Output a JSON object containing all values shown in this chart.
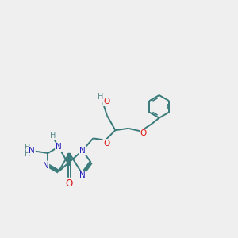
{
  "bg_color": "#efefef",
  "bond_color": "#3a7a7a",
  "N_color": "#2020bb",
  "O_color": "#dd1111",
  "H_color": "#5a8a8a",
  "fs": 7.5,
  "lw": 1.4,
  "fig_w": 3.0,
  "fig_h": 3.0,
  "dpi": 100,
  "xlim": [
    0.0,
    10.0
  ],
  "ylim": [
    0.5,
    10.5
  ]
}
